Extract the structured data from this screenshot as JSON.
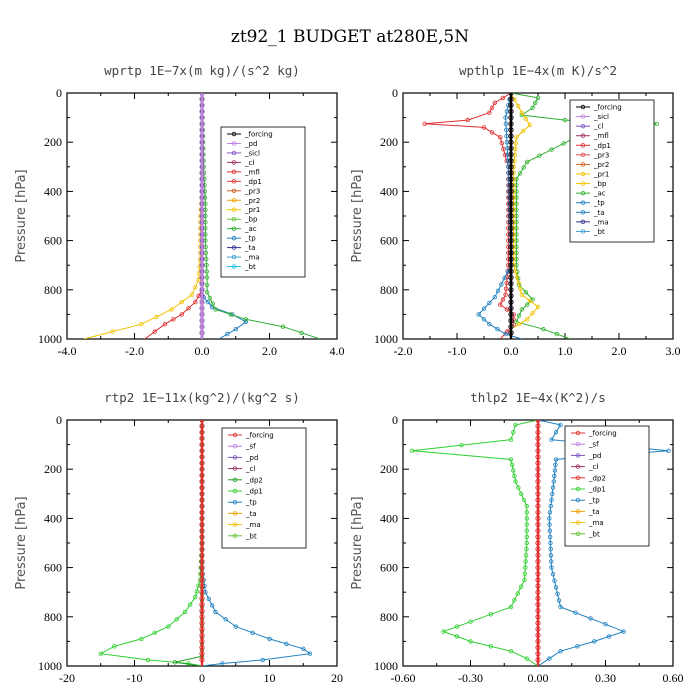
{
  "figure_title": "zt92_1  BUDGET at280E,5N",
  "chart_data": [
    {
      "type": "line",
      "title": "wprtp  1E−7x(m kg)/(s^2 kg)",
      "ylabel": "Pressure [hPa]",
      "xlim": [
        -4.0,
        4.0
      ],
      "ylim": [
        1000,
        0
      ],
      "xticks": [
        "-4.0",
        "-2.0",
        "0.0",
        "2.0",
        "4.0"
      ],
      "xtick_values": [
        -4,
        -2,
        0,
        2,
        4
      ],
      "yticks": [
        "0",
        "200",
        "400",
        "600",
        "800",
        "1000"
      ],
      "ytick_values": [
        0,
        200,
        400,
        600,
        800,
        1000
      ],
      "legend": [
        "_forcing",
        "_pd",
        "_sicl",
        "_cl",
        "_mfl",
        "_dp1",
        "_pr3",
        "_pr2",
        "_pr1",
        "_bp",
        "_ac",
        "_tp",
        "_ta",
        "_ma",
        "_bt"
      ],
      "series": [
        {
          "name": "_pr1",
          "color": "#f2c200",
          "points": [
            [
              0,
              0
            ],
            [
              0,
              400
            ],
            [
              -0.05,
              500
            ],
            [
              -0.05,
              650
            ],
            [
              -0.1,
              760
            ],
            [
              -0.3,
              820
            ],
            [
              -0.9,
              880
            ],
            [
              -1.8,
              940
            ],
            [
              -3.5,
              1000
            ]
          ]
        },
        {
          "name": "_dp1",
          "color": "#e03030",
          "points": [
            [
              0,
              0
            ],
            [
              0,
              750
            ],
            [
              0,
              800
            ],
            [
              -0.2,
              850
            ],
            [
              -0.6,
              900
            ],
            [
              -1.1,
              940
            ],
            [
              -1.7,
              1000
            ]
          ]
        },
        {
          "name": "_tp",
          "color": "#2080c0",
          "points": [
            [
              0,
              0
            ],
            [
              0,
              800
            ],
            [
              0.05,
              830
            ],
            [
              0.3,
              870
            ],
            [
              0.9,
              900
            ],
            [
              1.3,
              930
            ],
            [
              1.0,
              960
            ],
            [
              0.5,
              1000
            ]
          ]
        },
        {
          "name": "_ac",
          "color": "#30b030",
          "points": [
            [
              0,
              0
            ],
            [
              0.05,
              300
            ],
            [
              0.1,
              450
            ],
            [
              0.1,
              600
            ],
            [
              0.15,
              750
            ],
            [
              0.15,
              810
            ],
            [
              0.4,
              880
            ],
            [
              1.3,
              920
            ],
            [
              2.4,
              950
            ],
            [
              3.5,
              1000
            ]
          ]
        },
        {
          "name": "_forcing",
          "color": "#000000",
          "points": [
            [
              0,
              0
            ],
            [
              0,
              1000
            ]
          ]
        },
        {
          "name": "_pd",
          "color": "#c080e0",
          "points": [
            [
              0,
              0
            ],
            [
              0,
              1000
            ]
          ]
        }
      ]
    },
    {
      "type": "line",
      "title": "wpthlp  1E−4x(m K)/s^2",
      "ylabel": "Pressure [hPa]",
      "xlim": [
        -2.0,
        3.0
      ],
      "ylim": [
        1000,
        0
      ],
      "xticks": [
        "-2.0",
        "-1.0",
        "0.0",
        "1.0",
        "2.0",
        "3.0"
      ],
      "xtick_values": [
        -2,
        -1,
        0,
        1,
        2,
        3
      ],
      "yticks": [
        "0",
        "200",
        "400",
        "600",
        "800",
        "1000"
      ],
      "ytick_values": [
        0,
        200,
        400,
        600,
        800,
        1000
      ],
      "legend": [
        "_forcing",
        "_sicl",
        "_cl",
        "_mfl",
        "_dp1",
        "_pr3",
        "_pr2",
        "_pr1",
        "_bp",
        "_ac",
        "_tp",
        "_ta",
        "_ma",
        "_bt"
      ],
      "series": [
        {
          "name": "_dp1",
          "color": "#e03030",
          "points": [
            [
              0,
              0
            ],
            [
              -0.3,
              40
            ],
            [
              -0.4,
              80
            ],
            [
              -0.8,
              110
            ],
            [
              -1.6,
              125
            ],
            [
              -0.5,
              140
            ],
            [
              -0.2,
              180
            ],
            [
              -0.05,
              300
            ],
            [
              -0.05,
              700
            ],
            [
              -0.1,
              820
            ],
            [
              -0.2,
              860
            ],
            [
              0.05,
              900
            ],
            [
              0.05,
              940
            ],
            [
              -0.2,
              1000
            ]
          ]
        },
        {
          "name": "_ac",
          "color": "#30b030",
          "points": [
            [
              0,
              0
            ],
            [
              0.5,
              20
            ],
            [
              0.4,
              60
            ],
            [
              0.2,
              90
            ],
            [
              1.0,
              110
            ],
            [
              2.7,
              125
            ],
            [
              1.2,
              180
            ],
            [
              0.3,
              280
            ],
            [
              0.1,
              350
            ],
            [
              0.1,
              700
            ],
            [
              0.15,
              780
            ],
            [
              0.4,
              840
            ],
            [
              0.2,
              880
            ],
            [
              0.1,
              930
            ],
            [
              0.6,
              960
            ],
            [
              1.1,
              1000
            ]
          ]
        },
        {
          "name": "_pr1",
          "color": "#f2c200",
          "points": [
            [
              0,
              0
            ],
            [
              0.2,
              80
            ],
            [
              0.35,
              130
            ],
            [
              0.1,
              180
            ],
            [
              0.05,
              300
            ],
            [
              0.05,
              700
            ],
            [
              0.2,
              820
            ],
            [
              0.5,
              870
            ],
            [
              0.3,
              920
            ],
            [
              0,
              960
            ]
          ]
        },
        {
          "name": "_tp",
          "color": "#2080c0",
          "points": [
            [
              0,
              0
            ],
            [
              -0.1,
              100
            ],
            [
              -0.05,
              300
            ],
            [
              0,
              700
            ],
            [
              -0.3,
              830
            ],
            [
              -0.6,
              900
            ],
            [
              -0.4,
              940
            ],
            [
              -0.1,
              980
            ],
            [
              0.2,
              1000
            ]
          ]
        },
        {
          "name": "_pd",
          "color": "#c080e0",
          "points": [
            [
              0,
              0
            ],
            [
              0,
              1000
            ]
          ]
        },
        {
          "name": "_forcing",
          "color": "#000000",
          "points": [
            [
              0,
              0
            ],
            [
              0,
              1000
            ]
          ]
        }
      ]
    },
    {
      "type": "line",
      "title": "rtp2  1E−11x(kg^2)/(kg^2 s)",
      "ylabel": "Pressure [hPa]",
      "xlim": [
        -20,
        20
      ],
      "ylim": [
        1000,
        0
      ],
      "xticks": [
        "-20",
        "-10",
        "0",
        "10",
        "20"
      ],
      "xtick_values": [
        -20,
        -10,
        0,
        10,
        20
      ],
      "yticks": [
        "0",
        "200",
        "400",
        "600",
        "800",
        "1000"
      ],
      "ytick_values": [
        0,
        200,
        400,
        600,
        800,
        1000
      ],
      "legend": [
        "_forcing",
        "_sf",
        "_pd",
        "_cl",
        "_dp2",
        "_dp1",
        "_tp",
        "_ta",
        "_ma",
        "_bt"
      ],
      "series": [
        {
          "name": "_dp1",
          "color": "#30d030",
          "points": [
            [
              0,
              0
            ],
            [
              0,
              500
            ],
            [
              -0.3,
              650
            ],
            [
              -1,
              720
            ],
            [
              -2.5,
              780
            ],
            [
              -5,
              840
            ],
            [
              -9,
              890
            ],
            [
              -13,
              920
            ],
            [
              -15,
              950
            ],
            [
              -8,
              975
            ],
            [
              -2,
              990
            ],
            [
              0,
              1000
            ]
          ]
        },
        {
          "name": "_tp",
          "color": "#2080c0",
          "points": [
            [
              0,
              0
            ],
            [
              0,
              600
            ],
            [
              0.5,
              700
            ],
            [
              2,
              780
            ],
            [
              5,
              840
            ],
            [
              10,
              890
            ],
            [
              15,
              930
            ],
            [
              16,
              950
            ],
            [
              9,
              975
            ],
            [
              3,
              990
            ],
            [
              0,
              1000
            ]
          ]
        },
        {
          "name": "_dp2",
          "color": "#20a020",
          "points": [
            [
              0,
              0
            ],
            [
              0,
              960
            ],
            [
              -4,
              985
            ],
            [
              0,
              1000
            ]
          ]
        },
        {
          "name": "_forcing",
          "color": "#e03030",
          "points": [
            [
              0,
              0
            ],
            [
              0,
              1000
            ]
          ]
        }
      ]
    },
    {
      "type": "line",
      "title": "thlp2  1E−4x(K^2)/s",
      "ylabel": "Pressure [hPa]",
      "xlim": [
        -0.6,
        0.6
      ],
      "ylim": [
        1000,
        0
      ],
      "xticks": [
        "-0.60",
        "-0.30",
        "0.00",
        "0.30",
        "0.60"
      ],
      "xtick_values": [
        -0.6,
        -0.3,
        0,
        0.3,
        0.6
      ],
      "yticks": [
        "0",
        "200",
        "400",
        "600",
        "800",
        "1000"
      ],
      "ytick_values": [
        0,
        200,
        400,
        600,
        800,
        1000
      ],
      "legend": [
        "_forcing",
        "_sf",
        "_pd",
        "_cl",
        "_dp2",
        "_dp1",
        "_tp",
        "_ta",
        "_ma",
        "_bt"
      ],
      "series": [
        {
          "name": "_dp1",
          "color": "#30d030",
          "points": [
            [
              0,
              0
            ],
            [
              -0.1,
              20
            ],
            [
              -0.12,
              80
            ],
            [
              -0.56,
              125
            ],
            [
              -0.12,
              160
            ],
            [
              -0.1,
              250
            ],
            [
              -0.05,
              350
            ],
            [
              -0.05,
              500
            ],
            [
              -0.06,
              650
            ],
            [
              -0.12,
              760
            ],
            [
              -0.3,
              820
            ],
            [
              -0.42,
              860
            ],
            [
              -0.3,
              900
            ],
            [
              -0.12,
              940
            ],
            [
              -0.05,
              970
            ],
            [
              0,
              1000
            ]
          ]
        },
        {
          "name": "_tp",
          "color": "#2080c0",
          "points": [
            [
              0,
              0
            ],
            [
              0.1,
              20
            ],
            [
              0.06,
              80
            ],
            [
              0.58,
              125
            ],
            [
              0.08,
              160
            ],
            [
              0.07,
              250
            ],
            [
              0.05,
              400
            ],
            [
              0.06,
              600
            ],
            [
              0.1,
              760
            ],
            [
              0.3,
              830
            ],
            [
              0.38,
              860
            ],
            [
              0.25,
              900
            ],
            [
              0.1,
              940
            ],
            [
              0.05,
              970
            ],
            [
              0,
              1000
            ]
          ]
        },
        {
          "name": "_forcing",
          "color": "#e03030",
          "points": [
            [
              0,
              0
            ],
            [
              0,
              1000
            ]
          ]
        }
      ]
    }
  ]
}
